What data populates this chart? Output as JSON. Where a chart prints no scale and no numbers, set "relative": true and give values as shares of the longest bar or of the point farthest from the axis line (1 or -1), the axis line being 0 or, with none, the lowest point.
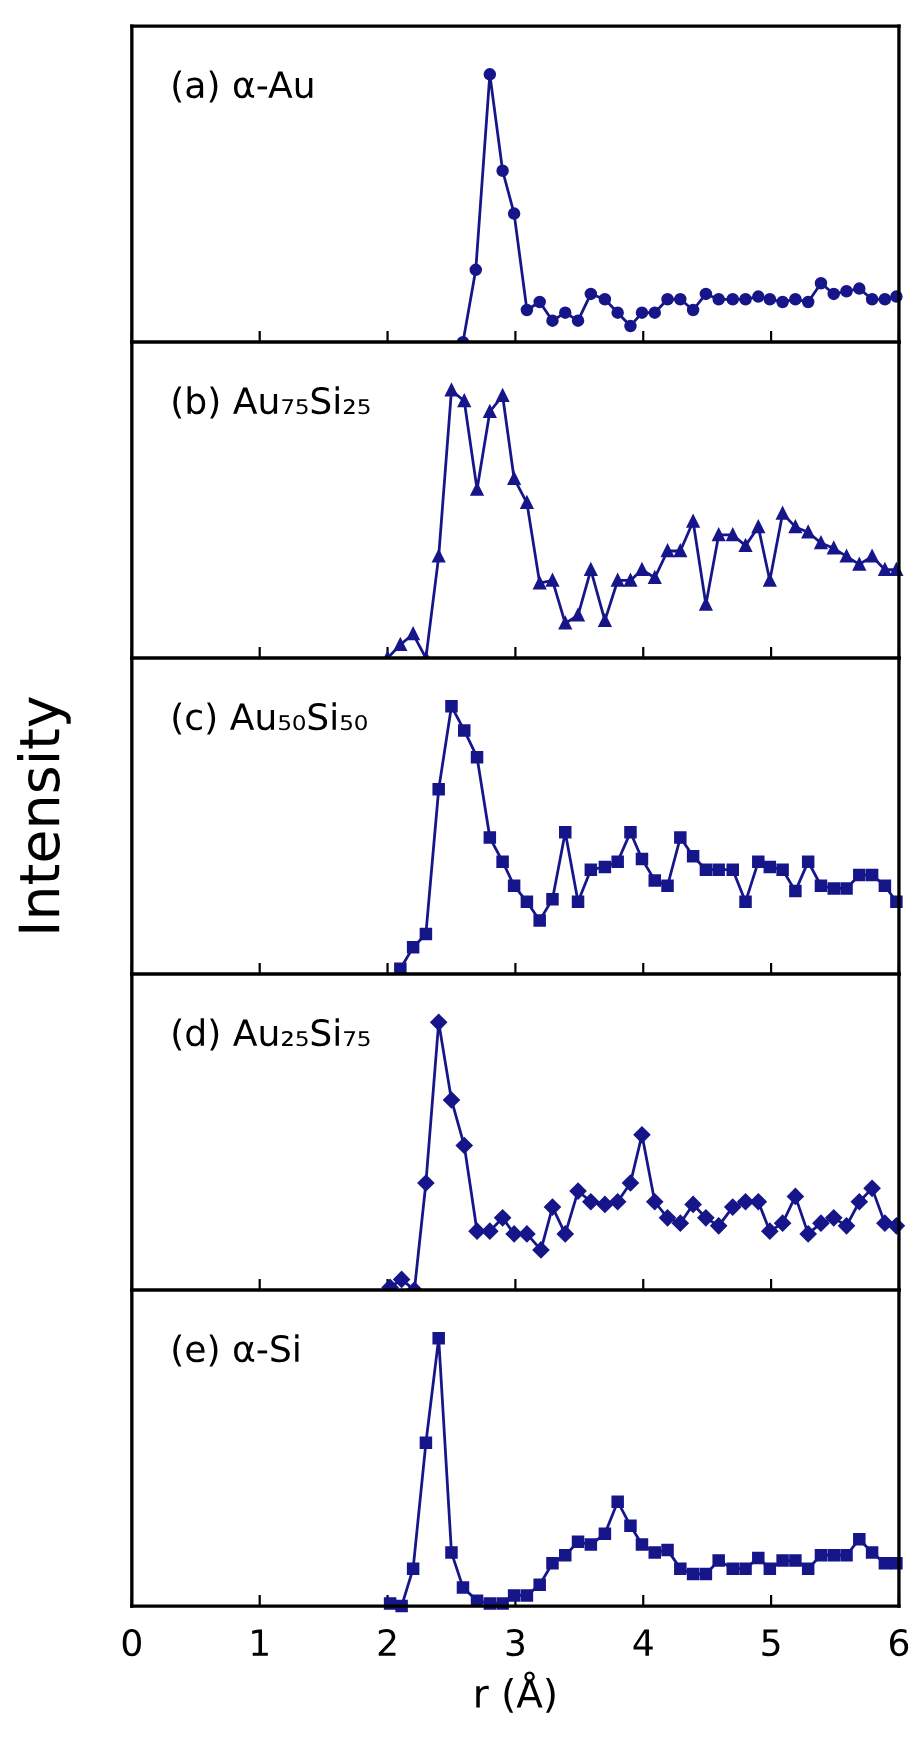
{
  "chart_data": [
    {
      "type": "line",
      "relative": true,
      "annotations": [
        "(a) α-Au"
      ],
      "xlim": [
        0,
        6
      ],
      "xticks": [
        0,
        1,
        2,
        3,
        4,
        5,
        6
      ],
      "tick_labels": false,
      "marker": "circle",
      "line_style": "solid",
      "grid": false,
      "series": [
        {
          "color": "#16168a",
          "x": [
            2.59,
            2.69,
            2.8,
            2.9,
            2.99,
            3.09,
            3.19,
            3.29,
            3.39,
            3.49,
            3.59,
            3.7,
            3.8,
            3.9,
            3.99,
            4.09,
            4.19,
            4.29,
            4.39,
            4.49,
            4.59,
            4.7,
            4.8,
            4.9,
            4.99,
            5.09,
            5.19,
            5.29,
            5.39,
            5.49,
            5.59,
            5.69,
            5.79,
            5.89,
            5.98
          ],
          "values": [
            0,
            0.27,
            1.0,
            0.64,
            0.48,
            0.12,
            0.15,
            0.08,
            0.11,
            0.08,
            0.18,
            0.16,
            0.11,
            0.06,
            0.11,
            0.11,
            0.16,
            0.16,
            0.12,
            0.18,
            0.16,
            0.16,
            0.16,
            0.17,
            0.16,
            0.15,
            0.16,
            0.15,
            0.22,
            0.18,
            0.19,
            0.2,
            0.16,
            0.16,
            0.17
          ]
        }
      ]
    },
    {
      "type": "line",
      "relative": true,
      "annotations": [
        "(b) Au₇₅Si₂₅"
      ],
      "xlim": [
        0,
        6
      ],
      "xticks": [
        0,
        1,
        2,
        3,
        4,
        5,
        6
      ],
      "tick_labels": false,
      "marker": "triangle",
      "line_style": "solid",
      "grid": false,
      "series": [
        {
          "color": "#16168a",
          "x": [
            2.0,
            2.1,
            2.2,
            2.3,
            2.4,
            2.5,
            2.6,
            2.7,
            2.8,
            2.9,
            2.99,
            3.09,
            3.19,
            3.29,
            3.39,
            3.49,
            3.59,
            3.7,
            3.8,
            3.9,
            3.99,
            4.09,
            4.19,
            4.29,
            4.39,
            4.49,
            4.59,
            4.7,
            4.8,
            4.9,
            4.99,
            5.09,
            5.19,
            5.29,
            5.39,
            5.49,
            5.59,
            5.69,
            5.79,
            5.89,
            5.98
          ],
          "values": [
            0,
            0.05,
            0.09,
            0,
            0.38,
            1.0,
            0.96,
            0.63,
            0.92,
            0.98,
            0.67,
            0.58,
            0.28,
            0.29,
            0.13,
            0.16,
            0.33,
            0.14,
            0.29,
            0.29,
            0.33,
            0.3,
            0.4,
            0.4,
            0.51,
            0.2,
            0.46,
            0.46,
            0.42,
            0.49,
            0.29,
            0.54,
            0.49,
            0.47,
            0.43,
            0.41,
            0.38,
            0.35,
            0.38,
            0.33,
            0.33
          ]
        }
      ]
    },
    {
      "type": "line",
      "relative": true,
      "annotations": [
        "(c) Au₅₀Si₅₀"
      ],
      "ylabel": "Intensity",
      "xlim": [
        0,
        6
      ],
      "xticks": [
        0,
        1,
        2,
        3,
        4,
        5,
        6
      ],
      "tick_labels": false,
      "marker": "square",
      "line_style": "solid",
      "grid": false,
      "series": [
        {
          "color": "#16168a",
          "x": [
            2.1,
            2.2,
            2.3,
            2.4,
            2.5,
            2.6,
            2.7,
            2.8,
            2.9,
            2.99,
            3.09,
            3.19,
            3.29,
            3.39,
            3.49,
            3.59,
            3.7,
            3.8,
            3.9,
            3.99,
            4.09,
            4.19,
            4.29,
            4.39,
            4.49,
            4.59,
            4.7,
            4.8,
            4.9,
            4.99,
            5.09,
            5.19,
            5.29,
            5.39,
            5.49,
            5.59,
            5.69,
            5.79,
            5.89,
            5.98
          ],
          "values": [
            0.02,
            0.1,
            0.15,
            0.69,
            1.0,
            0.91,
            0.81,
            0.51,
            0.42,
            0.33,
            0.27,
            0.2,
            0.28,
            0.53,
            0.27,
            0.39,
            0.4,
            0.42,
            0.53,
            0.43,
            0.35,
            0.33,
            0.51,
            0.44,
            0.39,
            0.39,
            0.39,
            0.27,
            0.42,
            0.4,
            0.39,
            0.31,
            0.42,
            0.33,
            0.32,
            0.32,
            0.37,
            0.37,
            0.33,
            0.27
          ]
        }
      ]
    },
    {
      "type": "line",
      "relative": true,
      "annotations": [
        "(d) Au₂₅Si₇₅"
      ],
      "xlim": [
        0,
        6
      ],
      "xticks": [
        0,
        1,
        2,
        3,
        4,
        5,
        6
      ],
      "tick_labels": false,
      "marker": "diamond",
      "line_style": "solid",
      "grid": false,
      "series": [
        {
          "color": "#16168a",
          "x": [
            2.02,
            2.11,
            2.21,
            2.3,
            2.4,
            2.5,
            2.6,
            2.7,
            2.8,
            2.9,
            2.99,
            3.09,
            3.2,
            3.29,
            3.39,
            3.49,
            3.59,
            3.7,
            3.8,
            3.9,
            3.99,
            4.09,
            4.19,
            4.29,
            4.39,
            4.49,
            4.59,
            4.7,
            4.8,
            4.9,
            4.99,
            5.09,
            5.19,
            5.29,
            5.39,
            5.49,
            5.59,
            5.69,
            5.79,
            5.89,
            5.98
          ],
          "values": [
            0.01,
            0.04,
            0,
            0.4,
            1.0,
            0.71,
            0.54,
            0.22,
            0.22,
            0.27,
            0.21,
            0.21,
            0.15,
            0.31,
            0.21,
            0.37,
            0.33,
            0.32,
            0.33,
            0.4,
            0.58,
            0.33,
            0.27,
            0.25,
            0.32,
            0.27,
            0.24,
            0.31,
            0.33,
            0.33,
            0.22,
            0.25,
            0.35,
            0.21,
            0.25,
            0.27,
            0.24,
            0.33,
            0.38,
            0.25,
            0.24
          ]
        }
      ]
    },
    {
      "type": "line",
      "relative": true,
      "annotations": [
        "(e) α-Si"
      ],
      "xlabel": "r (Å)",
      "xlim": [
        0,
        6
      ],
      "xticks": [
        0,
        1,
        2,
        3,
        4,
        5,
        6
      ],
      "tick_labels": "x",
      "marker": "square",
      "line_style": "solid",
      "grid": false,
      "series": [
        {
          "color": "#16168a",
          "x": [
            2.02,
            2.11,
            2.2,
            2.3,
            2.4,
            2.5,
            2.59,
            2.7,
            2.8,
            2.9,
            2.99,
            3.09,
            3.19,
            3.29,
            3.39,
            3.49,
            3.59,
            3.7,
            3.8,
            3.9,
            3.99,
            4.09,
            4.19,
            4.29,
            4.39,
            4.49,
            4.59,
            4.7,
            4.8,
            4.9,
            4.99,
            5.09,
            5.19,
            5.29,
            5.39,
            5.49,
            5.59,
            5.69,
            5.79,
            5.89,
            5.98
          ],
          "values": [
            0.01,
            0,
            0.14,
            0.61,
            1.0,
            0.2,
            0.07,
            0.02,
            0.01,
            0.01,
            0.04,
            0.04,
            0.08,
            0.16,
            0.19,
            0.24,
            0.23,
            0.27,
            0.39,
            0.3,
            0.23,
            0.2,
            0.21,
            0.14,
            0.12,
            0.12,
            0.17,
            0.14,
            0.14,
            0.18,
            0.14,
            0.17,
            0.17,
            0.14,
            0.19,
            0.19,
            0.19,
            0.25,
            0.2,
            0.16,
            0.16
          ]
        }
      ]
    }
  ]
}
